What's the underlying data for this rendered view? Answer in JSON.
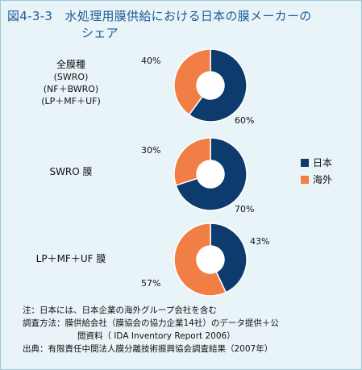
{
  "title": {
    "line1": "図4-3-3　水処理用膜供給における日本の膜メーカーの",
    "line2": "シェア"
  },
  "rows": [
    {
      "label": [
        "全膜種",
        "(SWRO)",
        "(NF＋BWRO)",
        "(LP＋MF＋UF)"
      ]
    },
    {
      "label": [
        "SWRO 膜"
      ]
    },
    {
      "label": [
        "LP＋MF＋UF 膜"
      ]
    }
  ],
  "legend": [
    {
      "name": "日本",
      "color": "#0d3b6e"
    },
    {
      "name": "海外",
      "color": "#f07e45"
    }
  ],
  "chart_data": [
    {
      "type": "pie",
      "name": "全膜種 (SWRO)(NF＋BWRO)(LP＋MF＋UF)",
      "slices": [
        {
          "label": "日本",
          "value": 60,
          "text": "60%"
        },
        {
          "label": "海外",
          "value": 40,
          "text": "40%"
        }
      ]
    },
    {
      "type": "pie",
      "name": "SWRO 膜",
      "slices": [
        {
          "label": "日本",
          "value": 70,
          "text": "70%"
        },
        {
          "label": "海外",
          "value": 30,
          "text": "30%"
        }
      ]
    },
    {
      "type": "pie",
      "name": "LP＋MF＋UF 膜",
      "slices": [
        {
          "label": "日本",
          "value": 43,
          "text": "43%"
        },
        {
          "label": "海外",
          "value": 57,
          "text": "57%"
        }
      ]
    }
  ],
  "notes": [
    "注：日本には、日本企業の海外グループ会社を含む",
    "調査方法：膜供給会社（膜協会の協力企業14社）のデータ提供＋公",
    "閲資料（ IDA Inventory Report 2006）",
    "出典：有限責任中間法人膜分離技術振興協会調査結果（2007年）"
  ]
}
